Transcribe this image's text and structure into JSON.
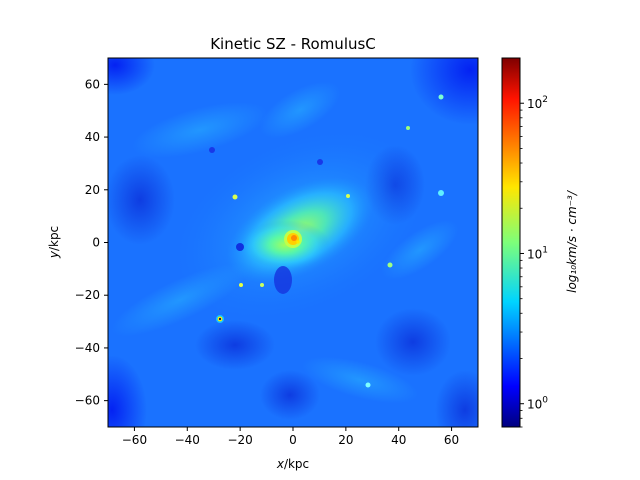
{
  "chart_data": {
    "type": "heatmap",
    "title": "Kinetic SZ - RomulusC",
    "xlabel_var": "x",
    "xlabel_unit": "/kpc",
    "ylabel_var": "y",
    "ylabel_unit": "/kpc",
    "xlim": [
      -70,
      70
    ],
    "ylim": [
      -70,
      70
    ],
    "x_ticks": [
      "−60",
      "−40",
      "−20",
      "0",
      "20",
      "40",
      "60"
    ],
    "y_ticks": [
      "60",
      "40",
      "20",
      "0",
      "−20",
      "−40",
      "−60"
    ],
    "x_tick_values": [
      -60,
      -40,
      -20,
      0,
      20,
      40,
      60
    ],
    "y_tick_values": [
      60,
      40,
      20,
      0,
      -20,
      -40,
      -60
    ],
    "colorbar": {
      "label": "log₁₀km/s · cm⁻³/",
      "scale": "log",
      "range": [
        0.7,
        200
      ],
      "colormap": "jet",
      "ticks": [
        {
          "value": 1,
          "base": "10",
          "exp": "0"
        },
        {
          "value": 10,
          "base": "10",
          "exp": "1"
        },
        {
          "value": 100,
          "base": "10",
          "exp": "2"
        }
      ]
    },
    "features": [
      {
        "desc": "bright central core",
        "x": 1,
        "y": 1,
        "value": 45
      },
      {
        "desc": "secondary hot spot",
        "x": -27,
        "y": -29,
        "value": 25
      },
      {
        "desc": "diffuse elevated region",
        "x": 5,
        "y": 8,
        "value": 8
      }
    ]
  }
}
